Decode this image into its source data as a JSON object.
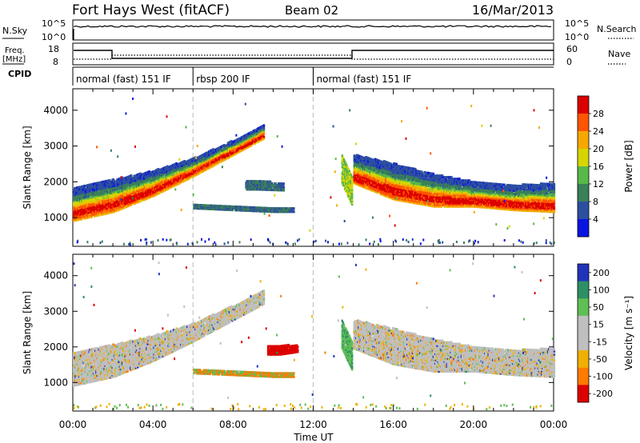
{
  "header": {
    "radar": "Fort Hays West (fitACF)",
    "beam": "Beam 02",
    "date": "16/Mar/2013"
  },
  "panels": {
    "nsky_label": "N.Sky",
    "nsky_ticks": [
      "10^5",
      "10^0"
    ],
    "nsearch_label": "N.Search",
    "freq_label": "Freq.",
    "freq_unit": "[MHz]",
    "freq_ticks": [
      "18",
      "8"
    ],
    "nave_label": "Nave",
    "nave_ticks": [
      "60",
      "0"
    ],
    "cpid_label": "CPID",
    "cpid_modes": [
      {
        "label": "normal (fast) 151 IF",
        "start_hour": 0,
        "end_hour": 6
      },
      {
        "label": "rbsp 200 IF",
        "start_hour": 6,
        "end_hour": 12
      },
      {
        "label": "normal (fast) 151 IF",
        "start_hour": 12,
        "end_hour": 24
      }
    ]
  },
  "chart_data": [
    {
      "type": "heatmap",
      "ylabel": "Slant Range [km]",
      "xlabel": "Time UT",
      "xlim": [
        0,
        24
      ],
      "ylim": [
        200,
        4600
      ],
      "yticks": [
        1000,
        2000,
        3000,
        4000
      ],
      "xtick_labels": [
        "00:00",
        "04:00",
        "08:00",
        "12:00",
        "16:00",
        "20:00",
        "00:00"
      ],
      "colorbar": {
        "label": "Power [dB]",
        "tick_labels": [
          "28",
          "24",
          "20",
          "16",
          "12",
          "8",
          "4"
        ],
        "colors": [
          "#dd0000",
          "#ff5500",
          "#f6a800",
          "#d7d500",
          "#58b84a",
          "#3a8058",
          "#2d4fa0",
          "#0a14e0"
        ]
      },
      "bands": [
        {
          "t": [
            0.0,
            2.0,
            4.0,
            6.0,
            8.0,
            9.5
          ],
          "center": [
            1400,
            1650,
            2000,
            2450,
            3000,
            3450
          ],
          "width": [
            900,
            900,
            700,
            500,
            400,
            400
          ],
          "value": "high"
        },
        {
          "t": [
            14.0,
            16.0,
            18.0,
            20.0,
            22.0,
            24.0
          ],
          "center": [
            2400,
            2050,
            1800,
            1700,
            1600,
            1600
          ],
          "width": [
            800,
            1000,
            900,
            700,
            700,
            800
          ],
          "value": "high"
        },
        {
          "t": [
            8.6,
            9.2,
            10.5
          ],
          "center": [
            1950,
            1950,
            1900
          ],
          "width": [
            250,
            250,
            200
          ],
          "value": "low"
        },
        {
          "t": [
            6.0,
            8.0,
            10.0,
            11.0
          ],
          "center": [
            1350,
            1300,
            1250,
            1250
          ],
          "width": [
            100,
            100,
            100,
            100
          ],
          "value": "low"
        },
        {
          "t": [
            13.4,
            13.9
          ],
          "center": [
            2400,
            1800
          ],
          "width": [
            800,
            800
          ],
          "value": "mid"
        }
      ]
    },
    {
      "type": "heatmap",
      "ylabel": "Slant Range [km]",
      "xlabel": "Time UT",
      "xlim": [
        0,
        24
      ],
      "ylim": [
        200,
        4600
      ],
      "yticks": [
        1000,
        2000,
        3000,
        4000
      ],
      "xtick_labels": [
        "00:00",
        "04:00",
        "08:00",
        "12:00",
        "16:00",
        "20:00",
        "00:00"
      ],
      "colorbar": {
        "label": "Velocity [m s⁻¹]",
        "tick_labels": [
          "200",
          "100",
          "50",
          "15",
          "-15",
          "-50",
          "-100",
          "-200"
        ],
        "colors": [
          "#2233bb",
          "#2d8f65",
          "#5fbf55",
          "#bfbfbf",
          "#bfbfbf",
          "#f0b000",
          "#ff7a00",
          "#dd0000"
        ]
      },
      "bands": [
        {
          "t": [
            0.0,
            2.0,
            4.0,
            6.0,
            8.0,
            9.5
          ],
          "center": [
            1400,
            1650,
            2000,
            2450,
            3000,
            3450
          ],
          "width": [
            900,
            900,
            700,
            500,
            400,
            400
          ],
          "value": "near-zero"
        },
        {
          "t": [
            14.0,
            16.0,
            18.0,
            20.0,
            22.0,
            24.0
          ],
          "center": [
            2400,
            2050,
            1800,
            1700,
            1600,
            1600
          ],
          "width": [
            800,
            1000,
            900,
            700,
            700,
            800
          ],
          "value": "near-zero"
        },
        {
          "t": [
            9.7,
            10.3,
            11.2
          ],
          "center": [
            1950,
            1950,
            2000
          ],
          "width": [
            250,
            250,
            200
          ],
          "value": "strong-negative"
        },
        {
          "t": [
            6.0,
            8.0,
            10.0,
            11.0
          ],
          "center": [
            1350,
            1300,
            1250,
            1250
          ],
          "width": [
            100,
            100,
            100,
            100
          ],
          "value": "negative"
        },
        {
          "t": [
            13.4,
            13.9
          ],
          "center": [
            2400,
            1800
          ],
          "width": [
            800,
            800
          ],
          "value": "positive"
        }
      ]
    }
  ],
  "time_axis_label": "Time UT"
}
